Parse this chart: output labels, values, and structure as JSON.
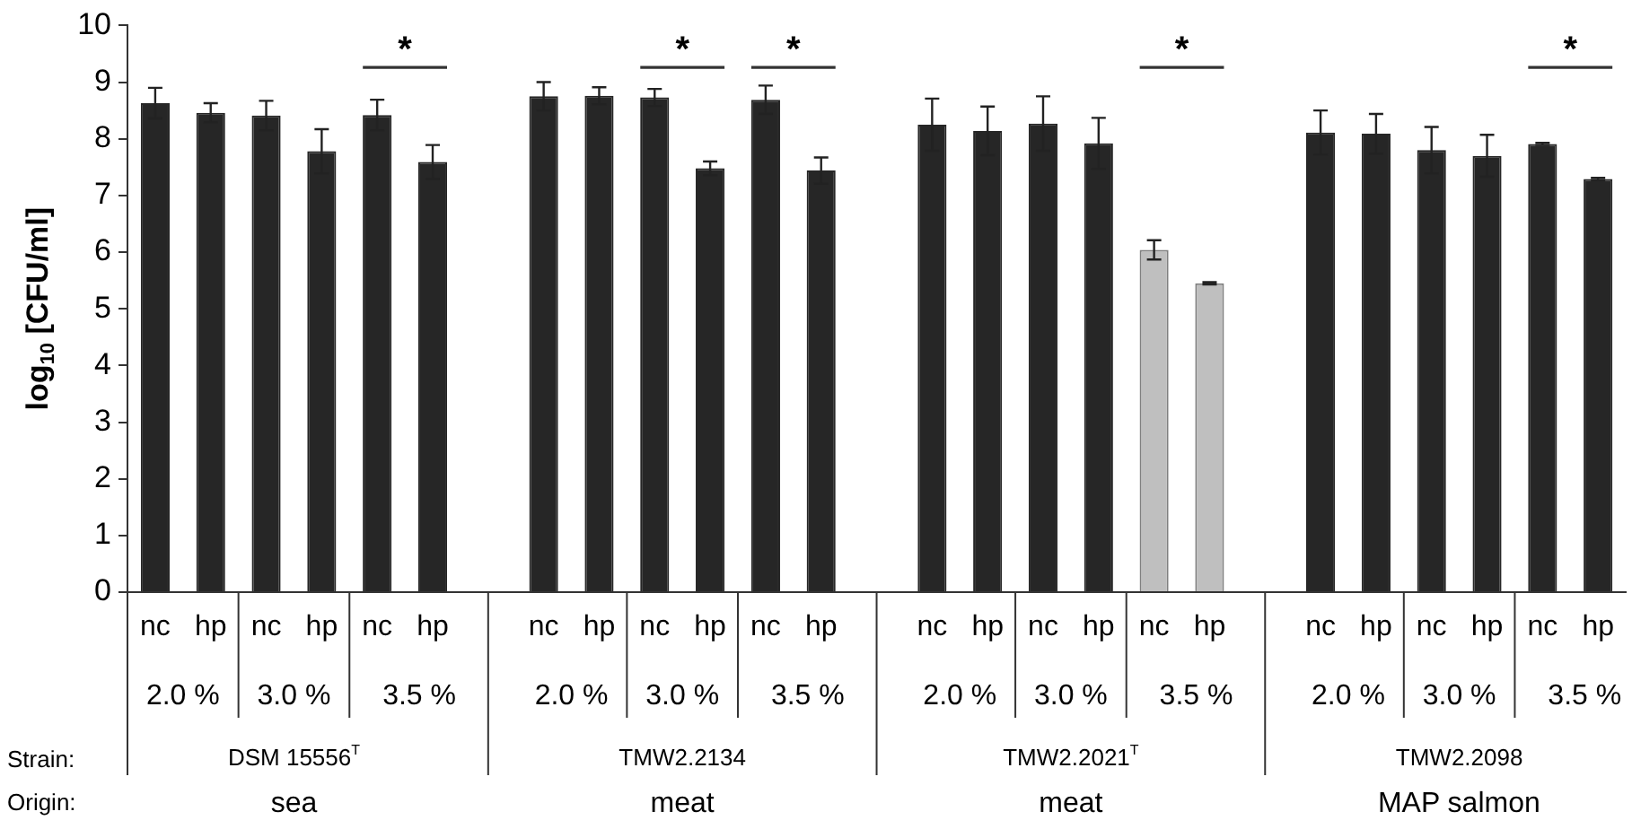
{
  "chart_data": {
    "type": "bar",
    "ylabel": "log$_{10}$ [CFU/ml]",
    "categories": [
      "nc",
      "hp",
      "nc",
      "hp",
      "nc",
      "hp",
      null,
      "nc",
      "hp",
      "nc",
      "hp",
      "nc",
      "hp",
      null,
      "nc",
      "hp",
      "nc",
      "hp",
      "nc",
      "hp",
      null,
      "nc",
      "hp",
      "nc",
      "hp",
      "nc",
      "hp"
    ],
    "values": [
      8.63,
      8.46,
      8.41,
      7.78,
      8.42,
      7.59,
      null,
      8.75,
      8.76,
      8.73,
      7.48,
      8.69,
      7.44,
      null,
      8.25,
      8.14,
      8.27,
      7.92,
      6.04,
      5.45,
      null,
      8.11,
      8.09,
      7.8,
      7.7,
      7.91,
      7.29
    ],
    "errors": [
      0.27,
      0.17,
      0.26,
      0.39,
      0.27,
      0.3,
      null,
      0.25,
      0.15,
      0.15,
      0.12,
      0.25,
      0.23,
      null,
      0.46,
      0.43,
      0.48,
      0.45,
      0.17,
      0.02,
      null,
      0.39,
      0.35,
      0.41,
      0.37,
      0.02,
      0.02
    ],
    "colors": [
      "#262626",
      "#262626",
      "#262626",
      "#262626",
      "#262626",
      "#262626",
      "#ffffff",
      "#262626",
      "#262626",
      "#262626",
      "#262626",
      "#262626",
      "#262626",
      "#ffffff",
      "#262626",
      "#262626",
      "#262626",
      "#262626",
      "#bfbfbf",
      "#bfbfbf",
      "#ffffff",
      "#262626",
      "#262626",
      "#262626",
      "#262626",
      "#262626",
      "#262626"
    ],
    "ylim": [
      0,
      10
    ],
    "yticks": [
      0,
      1,
      2,
      3,
      4,
      5,
      6,
      7,
      8,
      9,
      10
    ],
    "annotations": [
      "*",
      "*",
      "*",
      "*",
      "*",
      "2.0 %",
      "3.0 %",
      "3.5 %",
      "2.0 %",
      "3.0 %",
      "3.5 %",
      "2.0 %",
      "3.0 %",
      "3.5 %",
      "2.0 %",
      "3.0 %",
      "3.5 %",
      "Strain:",
      "DSM 15556$^{T}$",
      "TMW2.2134",
      "TMW2.2021$^{T}$",
      "TMW2.2098",
      "Origin:",
      "sea",
      "meat",
      "meat",
      "MAP salmon"
    ]
  }
}
